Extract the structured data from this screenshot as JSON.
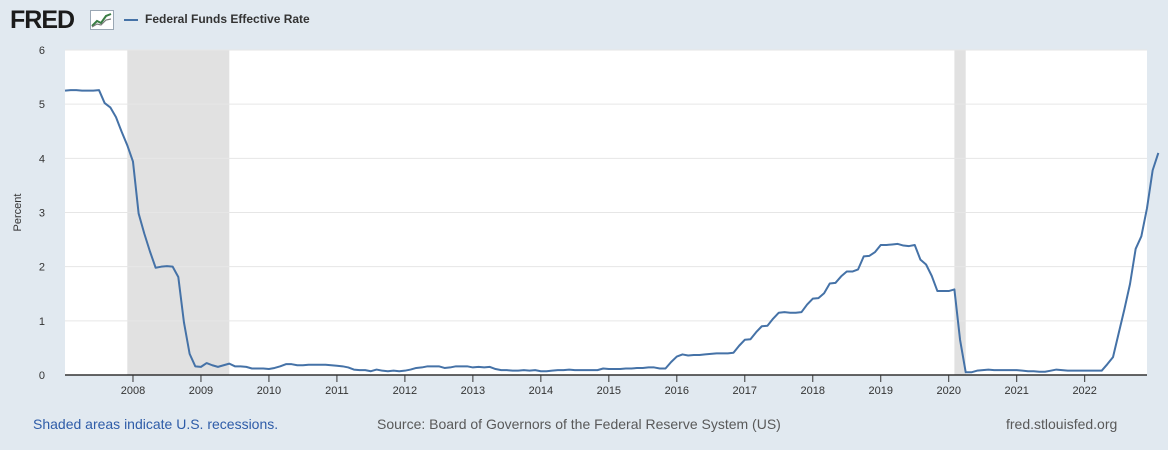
{
  "header": {
    "logo_text": "FRED",
    "logo_icon": "chart-line-icon"
  },
  "legend": {
    "series_label": "Federal Funds Effective Rate",
    "color": "#4572a7"
  },
  "footer": {
    "recession_note": "Shaded areas indicate U.S. recessions.",
    "source": "Source: Board of Governors of the Federal Reserve System (US)",
    "site": "fred.stlouisfed.org"
  },
  "colors": {
    "page_bg": "#e1e9f0",
    "plot_bg": "#ffffff",
    "recession": "#e1e1e1",
    "grid": "#e6e6e6",
    "line": "#4572a7"
  },
  "chart_data": {
    "type": "line",
    "title": "Federal Funds Effective Rate",
    "xlabel": "",
    "ylabel": "Percent",
    "x_unit": "months since Jan 2007",
    "xlim": [
      0,
      191
    ],
    "ylim": [
      0,
      6
    ],
    "yticks": [
      0,
      1,
      2,
      3,
      4,
      5,
      6
    ],
    "xticks": [
      {
        "label": "2008",
        "x": 12
      },
      {
        "label": "2009",
        "x": 24
      },
      {
        "label": "2010",
        "x": 36
      },
      {
        "label": "2011",
        "x": 48
      },
      {
        "label": "2012",
        "x": 60
      },
      {
        "label": "2013",
        "x": 72
      },
      {
        "label": "2014",
        "x": 84
      },
      {
        "label": "2015",
        "x": 96
      },
      {
        "label": "2016",
        "x": 108
      },
      {
        "label": "2017",
        "x": 120
      },
      {
        "label": "2018",
        "x": 132
      },
      {
        "label": "2019",
        "x": 144
      },
      {
        "label": "2020",
        "x": 156
      },
      {
        "label": "2021",
        "x": 168
      },
      {
        "label": "2022",
        "x": 180
      }
    ],
    "recessions": [
      [
        11,
        29
      ],
      [
        157,
        159
      ]
    ],
    "grid": true,
    "series": [
      {
        "name": "Federal Funds Effective Rate",
        "values": [
          5.25,
          5.26,
          5.26,
          5.25,
          5.25,
          5.25,
          5.26,
          5.02,
          4.94,
          4.76,
          4.49,
          4.24,
          3.94,
          2.98,
          2.61,
          2.28,
          1.98,
          2.0,
          2.01,
          2.0,
          1.81,
          0.97,
          0.39,
          0.16,
          0.15,
          0.22,
          0.18,
          0.15,
          0.18,
          0.21,
          0.16,
          0.16,
          0.15,
          0.12,
          0.12,
          0.12,
          0.11,
          0.13,
          0.16,
          0.2,
          0.2,
          0.18,
          0.18,
          0.19,
          0.19,
          0.19,
          0.19,
          0.18,
          0.17,
          0.16,
          0.14,
          0.1,
          0.09,
          0.09,
          0.07,
          0.1,
          0.08,
          0.07,
          0.08,
          0.07,
          0.08,
          0.1,
          0.13,
          0.14,
          0.16,
          0.16,
          0.16,
          0.13,
          0.14,
          0.16,
          0.16,
          0.16,
          0.14,
          0.15,
          0.14,
          0.15,
          0.11,
          0.09,
          0.09,
          0.08,
          0.08,
          0.09,
          0.08,
          0.09,
          0.07,
          0.07,
          0.08,
          0.09,
          0.09,
          0.1,
          0.09,
          0.09,
          0.09,
          0.09,
          0.09,
          0.12,
          0.11,
          0.11,
          0.11,
          0.12,
          0.12,
          0.13,
          0.13,
          0.14,
          0.14,
          0.12,
          0.12,
          0.24,
          0.34,
          0.38,
          0.36,
          0.37,
          0.37,
          0.38,
          0.39,
          0.4,
          0.4,
          0.4,
          0.41,
          0.54,
          0.65,
          0.66,
          0.79,
          0.9,
          0.91,
          1.04,
          1.15,
          1.16,
          1.15,
          1.15,
          1.16,
          1.3,
          1.41,
          1.42,
          1.51,
          1.69,
          1.7,
          1.82,
          1.91,
          1.91,
          1.95,
          2.19,
          2.2,
          2.27,
          2.4,
          2.4,
          2.41,
          2.42,
          2.39,
          2.38,
          2.4,
          2.13,
          2.04,
          1.83,
          1.55,
          1.55,
          1.55,
          1.58,
          0.65,
          0.05,
          0.05,
          0.08,
          0.09,
          0.1,
          0.09,
          0.09,
          0.09,
          0.09,
          0.09,
          0.08,
          0.07,
          0.07,
          0.06,
          0.06,
          0.08,
          0.1,
          0.09,
          0.08,
          0.08,
          0.08,
          0.08,
          0.08,
          0.08,
          0.08,
          0.2,
          0.33,
          0.77,
          1.21,
          1.68,
          2.33,
          2.56,
          3.08,
          3.78,
          4.1
        ]
      }
    ]
  }
}
